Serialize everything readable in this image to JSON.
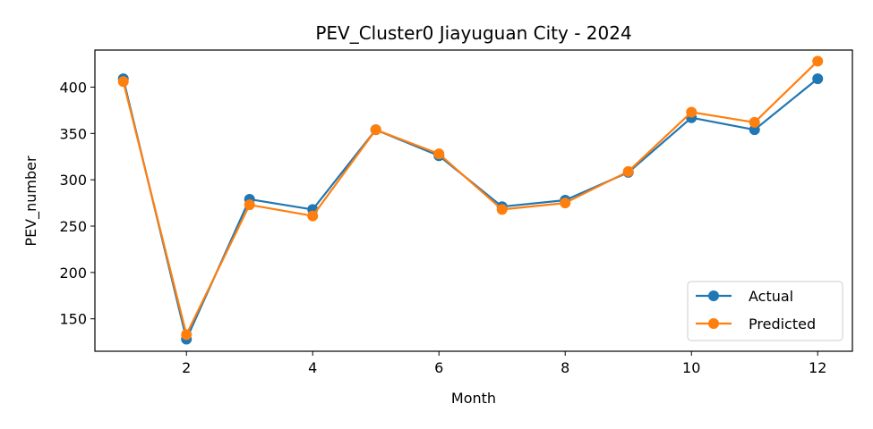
{
  "chart_data": {
    "type": "line",
    "title": "PEV_Cluster0 Jiayuguan City - 2024",
    "xlabel": "Month",
    "ylabel": "PEV_number",
    "x": [
      1,
      2,
      3,
      4,
      5,
      6,
      7,
      8,
      9,
      10,
      11,
      12
    ],
    "xlim": [
      0.55,
      12.55
    ],
    "ylim": [
      115,
      440
    ],
    "xticks": [
      2,
      4,
      6,
      8,
      10,
      12
    ],
    "yticks": [
      150,
      200,
      250,
      300,
      350,
      400
    ],
    "grid": false,
    "legend_position": "lower-right",
    "series": [
      {
        "name": "Actual",
        "color": "#1f77b4",
        "values": [
          409,
          128,
          279,
          268,
          354,
          326,
          271,
          278,
          308,
          367,
          354,
          409
        ]
      },
      {
        "name": "Predicted",
        "color": "#ff7f0e",
        "values": [
          406,
          133,
          273,
          261,
          354,
          328,
          268,
          275,
          309,
          373,
          362,
          428
        ]
      }
    ]
  }
}
